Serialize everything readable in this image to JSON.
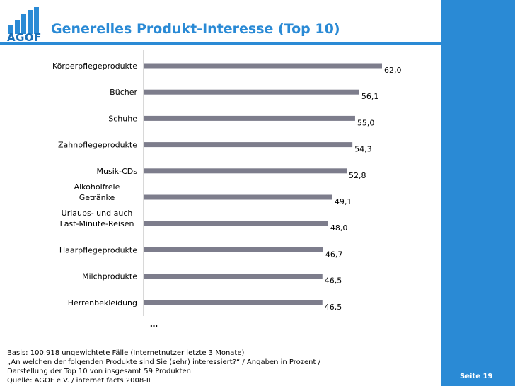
{
  "slide": {
    "logo_text": "AGOF",
    "title": "Generelles Produkt-Interesse (Top 10)",
    "ellipsis": "…",
    "page_label": "Seite 19",
    "footer_lines": [
      "Basis: 100.918 ungewichtete Fälle (Internetnutzer letzte 3 Monate)",
      "„An welchen der folgenden Produkte sind Sie (sehr) interessiert?“ / Angaben in Prozent /",
      "Darstellung der Top 10 von insgesamt 59 Produkten",
      "Quelle: AGOF e.V. / internet facts 2008-II"
    ]
  },
  "colors": {
    "accent": "#2a8ad5",
    "bar": "#7d7d8c",
    "text": "#000000"
  },
  "chart_data": {
    "type": "bar",
    "orientation": "horizontal",
    "title": "Generelles Produkt-Interesse (Top 10)",
    "categories": [
      "Körperpflegeprodukte",
      "Bücher",
      "Schuhe",
      "Zahnpflegeprodukte",
      "Musik-CDs",
      "Alkoholfreie Getränke",
      "Urlaubs- und auch Last-Minute-Reisen",
      "Haarpflegeprodukte",
      "Milchprodukte",
      "Herrenbekleidung"
    ],
    "category_lines": [
      [
        "Körperpflegeprodukte"
      ],
      [
        "Bücher"
      ],
      [
        "Schuhe"
      ],
      [
        "Zahnpflegeprodukte"
      ],
      [
        "Musik-CDs"
      ],
      [
        "Alkoholfreie",
        "Getränke"
      ],
      [
        "Urlaubs- und auch",
        "Last-Minute-Reisen"
      ],
      [
        "Haarpflegeprodukte"
      ],
      [
        "Milchprodukte"
      ],
      [
        "Herrenbekleidung"
      ]
    ],
    "values": [
      62.0,
      56.1,
      55.0,
      54.3,
      52.8,
      49.1,
      48.0,
      46.7,
      46.5,
      46.5
    ],
    "value_labels": [
      "62,0",
      "56,1",
      "55,0",
      "54,3",
      "52,8",
      "49,1",
      "48,0",
      "46,7",
      "46,5",
      "46,5"
    ],
    "xlim": [
      0,
      62
    ],
    "xlabel": "",
    "ylabel": "",
    "grid": false,
    "legend": false
  }
}
